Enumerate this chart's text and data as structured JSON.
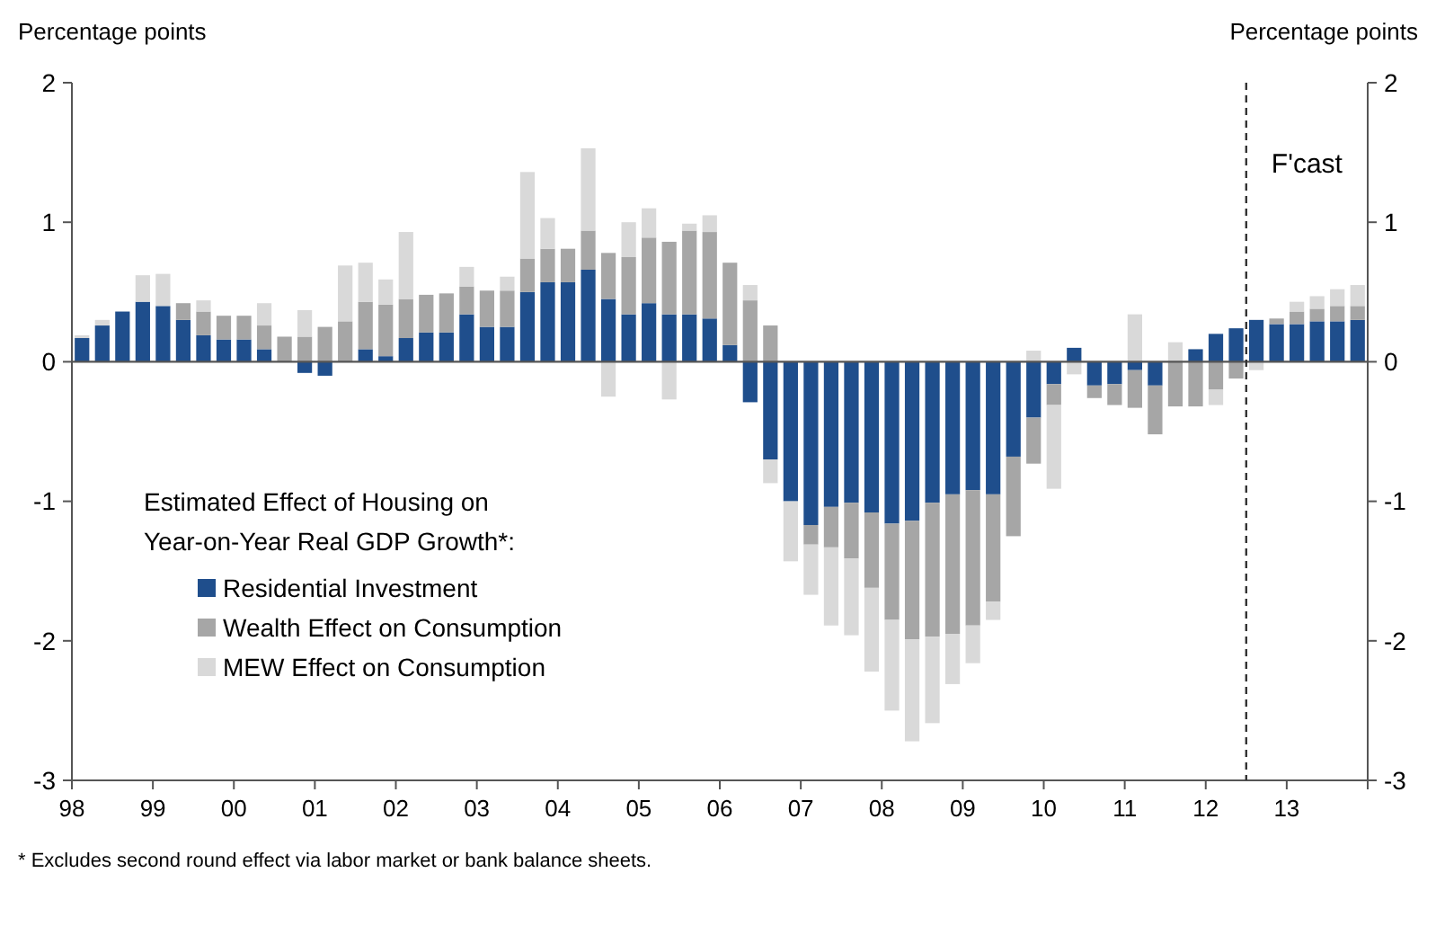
{
  "chart_data": {
    "type": "bar",
    "stacked": true,
    "ylabel": "Percentage points",
    "y2label": "Percentage points",
    "legend_title": "Estimated Effect of Housing on Year-on-Year Real GDP Growth*:",
    "legend": "bottom left",
    "x": [
      1998.125,
      1998.375,
      1998.625,
      1998.875,
      1999.125,
      1999.375,
      1999.625,
      1999.875,
      2000.125,
      2000.375,
      2000.625,
      2000.875,
      2001.125,
      2001.375,
      2001.625,
      2001.875,
      2002.125,
      2002.375,
      2002.625,
      2002.875,
      2003.125,
      2003.375,
      2003.625,
      2003.875,
      2004.125,
      2004.375,
      2004.625,
      2004.875,
      2005.125,
      2005.375,
      2005.625,
      2005.875,
      2006.125,
      2006.375,
      2006.625,
      2006.875,
      2007.125,
      2007.375,
      2007.625,
      2007.875,
      2008.125,
      2008.375,
      2008.625,
      2008.875,
      2009.125,
      2009.375,
      2009.625,
      2009.875,
      2010.125,
      2010.375,
      2010.625,
      2010.875,
      2011.125,
      2011.375,
      2011.625,
      2011.875,
      2012.125,
      2012.375,
      2012.625,
      2012.875,
      2013.125,
      2013.375,
      2013.625,
      2013.875
    ],
    "series": [
      {
        "name": "Residential Investment",
        "color": "#1f4e8c",
        "values": [
          0.17,
          0.26,
          0.36,
          0.43,
          0.4,
          0.3,
          0.19,
          0.16,
          0.16,
          0.09,
          0,
          -0.08,
          -0.1,
          0,
          0.09,
          0.04,
          0.17,
          0.21,
          0.21,
          0.34,
          0.25,
          0.25,
          0.5,
          0.57,
          0.57,
          0.66,
          0.45,
          0.34,
          0.42,
          0.34,
          0.34,
          0.31,
          0.12,
          -0.29,
          -0.7,
          -1.0,
          -1.17,
          -1.04,
          -1.01,
          -1.08,
          -1.16,
          -1.14,
          -1.01,
          -0.95,
          -0.92,
          -0.95,
          -0.68,
          -0.4,
          -0.16,
          0.1,
          -0.17,
          -0.16,
          -0.06,
          -0.17,
          0,
          0.09,
          0.2,
          0.24,
          0.3,
          0.27,
          0.27,
          0.29,
          0.29,
          0.3
        ]
      },
      {
        "name": "Wealth Effect on Consumption",
        "color": "#a6a6a6",
        "values": [
          0,
          0,
          0,
          0,
          0,
          0.12,
          0.17,
          0.17,
          0.17,
          0.17,
          0.18,
          0.18,
          0.25,
          0.29,
          0.34,
          0.37,
          0.28,
          0.27,
          0.28,
          0.2,
          0.26,
          0.26,
          0.24,
          0.24,
          0.24,
          0.28,
          0.33,
          0.41,
          0.47,
          0.52,
          0.6,
          0.62,
          0.59,
          0.44,
          0.26,
          0,
          -0.14,
          -0.29,
          -0.4,
          -0.54,
          -0.69,
          -0.85,
          -0.96,
          -1.0,
          -0.97,
          -0.77,
          -0.57,
          -0.33,
          -0.15,
          0,
          -0.09,
          -0.15,
          -0.27,
          -0.35,
          -0.32,
          -0.32,
          -0.2,
          -0.12,
          0,
          0.04,
          0.09,
          0.09,
          0.11,
          0.1
        ]
      },
      {
        "name": "MEW Effect on Consumption",
        "color": "#d9d9d9",
        "values": [
          0.02,
          0.04,
          0,
          0.19,
          0.23,
          0,
          0.08,
          0,
          0,
          0.16,
          0,
          0.19,
          0,
          0.4,
          0.28,
          0.18,
          0.48,
          0,
          0,
          0.14,
          0,
          0.1,
          0.62,
          0.22,
          0,
          0.59,
          -0.25,
          0.25,
          0.21,
          -0.27,
          0.05,
          0.12,
          0,
          0.11,
          -0.17,
          -0.43,
          -0.36,
          -0.56,
          -0.55,
          -0.6,
          -0.65,
          -0.73,
          -0.62,
          -0.36,
          -0.27,
          -0.13,
          0,
          0.08,
          -0.6,
          -0.09,
          0,
          0,
          0.34,
          0,
          0.14,
          0,
          -0.11,
          0,
          -0.06,
          0,
          0.07,
          0.09,
          0.12,
          0.15
        ]
      }
    ],
    "xlim": [
      1998,
      2014
    ],
    "xticks": [
      {
        "value": 1998,
        "label": "98"
      },
      {
        "value": 1999,
        "label": "99"
      },
      {
        "value": 2000,
        "label": "00"
      },
      {
        "value": 2001,
        "label": "01"
      },
      {
        "value": 2002,
        "label": "02"
      },
      {
        "value": 2003,
        "label": "03"
      },
      {
        "value": 2004,
        "label": "04"
      },
      {
        "value": 2005,
        "label": "05"
      },
      {
        "value": 2006,
        "label": "06"
      },
      {
        "value": 2007,
        "label": "07"
      },
      {
        "value": 2008,
        "label": "08"
      },
      {
        "value": 2009,
        "label": "09"
      },
      {
        "value": 2010,
        "label": "10"
      },
      {
        "value": 2011,
        "label": "11"
      },
      {
        "value": 2012,
        "label": "12"
      },
      {
        "value": 2013,
        "label": "13"
      },
      {
        "value": 2014,
        "label": null
      }
    ],
    "ylim": [
      -3,
      2
    ],
    "yticks": [
      -3,
      -2,
      -1,
      0,
      1,
      2
    ],
    "y2lim": [
      -3,
      2
    ],
    "y2ticks": [
      -3,
      -2,
      -1,
      0,
      1,
      2
    ],
    "ref_lines": [
      {
        "axis": "x",
        "value": 2012.5,
        "label": "F'cast",
        "line_style": "dashed",
        "color": "#333333"
      }
    ],
    "annotations": [
      "* Excludes second round effect via labor market or bank balance sheets."
    ]
  }
}
